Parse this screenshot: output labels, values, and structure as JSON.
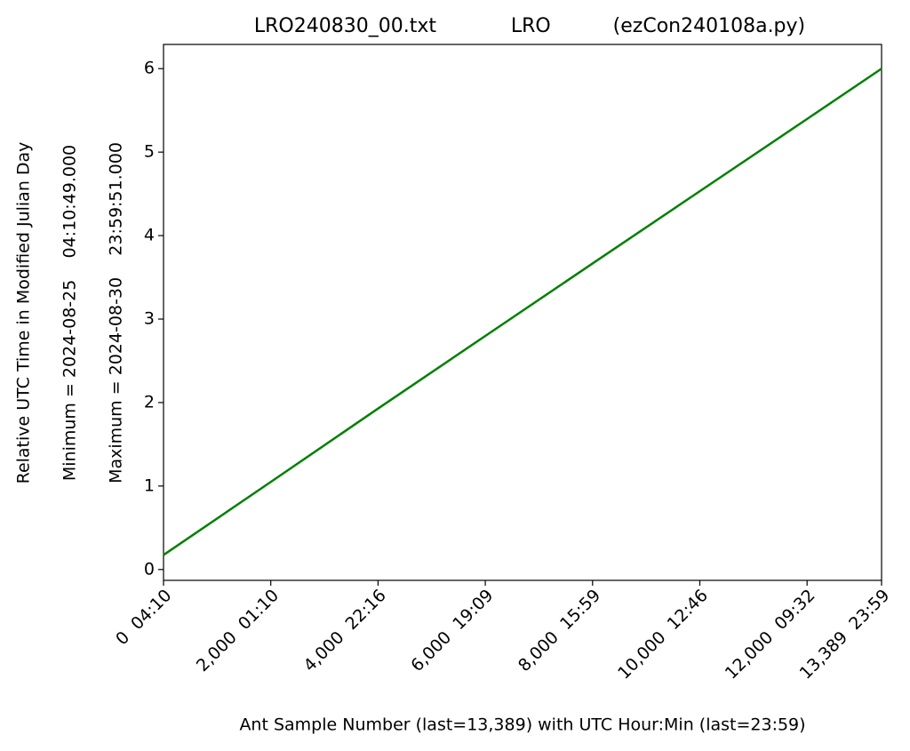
{
  "chart_data": {
    "type": "line",
    "title": "LRO240830_00.txt            LRO          (ezCon240108a.py)",
    "xlabel": "Ant Sample Number (last=13,389) with UTC Hour:Min (last=23:59)",
    "ylabel": [
      "Relative UTC Time in Modified Julian Day",
      "Minimum = 2024-08-25    04:10:49.000",
      "Maximum = 2024-08-30    23:59:51.000"
    ],
    "x": [
      0,
      2000,
      4000,
      6000,
      8000,
      10000,
      12000,
      13389
    ],
    "series": [
      {
        "color": "#008000",
        "values": [
          0.174,
          1.049,
          1.928,
          2.798,
          3.666,
          4.532,
          5.397,
          6.0
        ]
      }
    ],
    "xlim": [
      0,
      13389
    ],
    "xticks": [
      {
        "value": 0,
        "label": "0  04:10"
      },
      {
        "value": 2000,
        "label": "2,000  01:10"
      },
      {
        "value": 4000,
        "label": "4,000  22:16"
      },
      {
        "value": 6000,
        "label": "6,000  19:09"
      },
      {
        "value": 8000,
        "label": "8,000  15:59"
      },
      {
        "value": 10000,
        "label": "10,000  12:46"
      },
      {
        "value": 12000,
        "label": "12,000  09:32"
      },
      {
        "value": 13389,
        "label": "13,389  23:59"
      }
    ],
    "ylim": [
      -0.13,
      6.29
    ],
    "yticks": [
      0,
      1,
      2,
      3,
      4,
      5,
      6
    ]
  }
}
